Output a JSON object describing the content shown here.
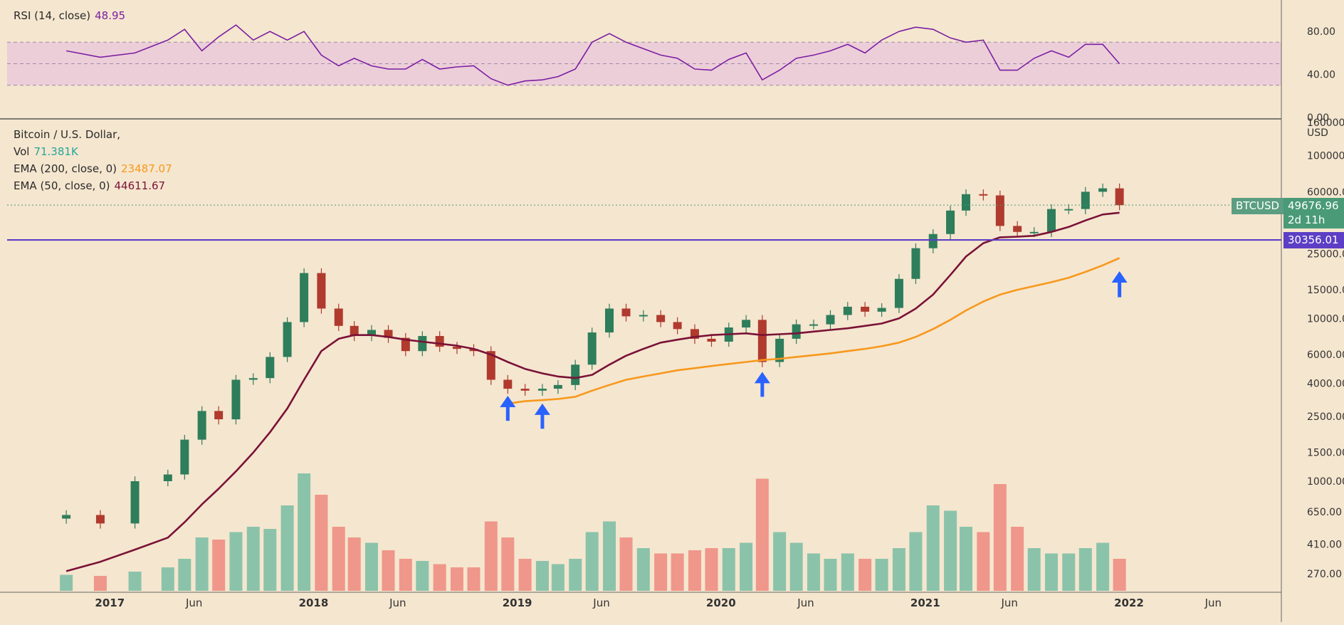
{
  "rsi_legend": {
    "label": "RSI (14, close)",
    "value": "48.95"
  },
  "main_legend": {
    "title": "Bitcoin / U.S. Dollar,",
    "vol_label": "Vol",
    "vol_value": "71.381K",
    "ema200_label": "EMA (200, close, 0)",
    "ema200_value": "23487.07",
    "ema50_label": "EMA (50, close, 0)",
    "ema50_value": "44611.67"
  },
  "price_axis": {
    "unit": "USD"
  },
  "badges": {
    "symbol": "BTCUSD",
    "last_price": "49676.96",
    "countdown": "2d 11h",
    "level": "30356.01"
  },
  "colors": {
    "background": "#f5e6cf",
    "up": "#2e7d5b",
    "down": "#b03a2e",
    "vol_up": "#7fbfa5",
    "vol_down": "#ee8e82",
    "ema50": "#7a1237",
    "ema200": "#f7981d",
    "rsi": "#7b1fa2",
    "level_line": "#5c3fc4",
    "arrow": "#2962ff"
  },
  "chart_data": [
    {
      "type": "line",
      "name": "RSI (14, close)",
      "ylim": [
        0,
        100
      ],
      "y_ticks": [
        "80.00",
        "40.00",
        "0.00"
      ],
      "bands": {
        "upper": 70,
        "lower": 30,
        "mid": 50
      },
      "x": [
        "2016-10",
        "2016-12",
        "2017-02",
        "2017-04",
        "2017-05",
        "2017-06",
        "2017-07",
        "2017-08",
        "2017-09",
        "2017-10",
        "2017-11",
        "2017-12",
        "2018-01",
        "2018-02",
        "2018-03",
        "2018-04",
        "2018-05",
        "2018-06",
        "2018-07",
        "2018-08",
        "2018-09",
        "2018-10",
        "2018-11",
        "2018-12",
        "2019-01",
        "2019-02",
        "2019-03",
        "2019-04",
        "2019-05",
        "2019-06",
        "2019-07",
        "2019-08",
        "2019-09",
        "2019-10",
        "2019-11",
        "2019-12",
        "2020-01",
        "2020-02",
        "2020-03",
        "2020-04",
        "2020-05",
        "2020-06",
        "2020-07",
        "2020-08",
        "2020-09",
        "2020-10",
        "2020-11",
        "2020-12",
        "2021-01",
        "2021-02",
        "2021-03",
        "2021-04",
        "2021-05",
        "2021-06",
        "2021-07",
        "2021-08",
        "2021-09",
        "2021-10",
        "2021-11",
        "2021-12"
      ],
      "values": [
        62,
        56,
        60,
        72,
        82,
        62,
        75,
        86,
        72,
        80,
        72,
        80,
        58,
        48,
        55,
        48,
        45,
        45,
        54,
        45,
        47,
        48,
        36,
        30,
        34,
        35,
        38,
        45,
        70,
        78,
        70,
        64,
        58,
        55,
        45,
        44,
        54,
        60,
        35,
        44,
        55,
        58,
        62,
        68,
        60,
        72,
        80,
        84,
        82,
        74,
        70,
        72,
        44,
        44,
        55,
        62,
        56,
        68,
        68,
        50
      ]
    },
    {
      "type": "line",
      "name": "Bitcoin / U.S. Dollar",
      "y_scale": "log",
      "ylim": [
        200,
        170000
      ],
      "y_ticks": [
        "160000.00",
        "100000.00",
        "60000.00",
        "25000.00",
        "15000.00",
        "10000.00",
        "6000.00",
        "4000.00",
        "2500.00",
        "1500.00",
        "1000.00",
        "650.00",
        "410.00",
        "270.00"
      ],
      "x_ticks": [
        "2017",
        "Jun",
        "2018",
        "Jun",
        "2019",
        "Jun",
        "2020",
        "Jun",
        "2021",
        "Jun",
        "2022",
        "Jun"
      ],
      "x": [
        "2016-10",
        "2016-12",
        "2017-02",
        "2017-04",
        "2017-05",
        "2017-06",
        "2017-07",
        "2017-08",
        "2017-09",
        "2017-10",
        "2017-11",
        "2017-12",
        "2018-01",
        "2018-02",
        "2018-03",
        "2018-04",
        "2018-05",
        "2018-06",
        "2018-07",
        "2018-08",
        "2018-09",
        "2018-10",
        "2018-11",
        "2018-12",
        "2019-01",
        "2019-02",
        "2019-03",
        "2019-04",
        "2019-05",
        "2019-06",
        "2019-07",
        "2019-08",
        "2019-09",
        "2019-10",
        "2019-11",
        "2019-12",
        "2020-01",
        "2020-02",
        "2020-03",
        "2020-04",
        "2020-05",
        "2020-06",
        "2020-07",
        "2020-08",
        "2020-09",
        "2020-10",
        "2020-11",
        "2020-12",
        "2021-01",
        "2021-02",
        "2021-03",
        "2021-04",
        "2021-05",
        "2021-06",
        "2021-07",
        "2021-08",
        "2021-09",
        "2021-10",
        "2021-11",
        "2021-12"
      ],
      "series": [
        {
          "name": "Bitcoin / U.S. Dollar",
          "values": [
            620,
            550,
            1000,
            1100,
            1800,
            2700,
            2400,
            4200,
            4300,
            5800,
            9500,
            19000,
            11500,
            9000,
            7800,
            8500,
            7600,
            6300,
            7800,
            6700,
            6500,
            6300,
            4200,
            3700,
            3600,
            3700,
            3900,
            5200,
            8200,
            11500,
            10300,
            10500,
            9500,
            8600,
            7500,
            7200,
            8800,
            9800,
            5400,
            7500,
            9200,
            9200,
            10500,
            11800,
            11000,
            11600,
            17500,
            27000,
            33000,
            46000,
            58000,
            57000,
            37000,
            34000,
            34000,
            47000,
            47000,
            60000,
            63000,
            49676.96
          ]
        },
        {
          "name": "EMA (200, close, 0)",
          "values": [
            null,
            null,
            null,
            null,
            null,
            null,
            null,
            null,
            null,
            null,
            null,
            null,
            null,
            null,
            null,
            null,
            null,
            null,
            null,
            null,
            null,
            null,
            null,
            3000,
            3100,
            3150,
            3200,
            3300,
            3600,
            3900,
            4200,
            4400,
            4600,
            4800,
            4950,
            5100,
            5250,
            5400,
            5550,
            5650,
            5800,
            5950,
            6100,
            6300,
            6500,
            6750,
            7100,
            7700,
            8600,
            9800,
            11200,
            12700,
            14000,
            15000,
            15800,
            16700,
            17800,
            19300,
            21200,
            23487.07
          ]
        },
        {
          "name": "EMA (50, close, 0)",
          "values": [
            280,
            320,
            380,
            450,
            560,
            720,
            900,
            1150,
            1500,
            2000,
            2800,
            4200,
            6300,
            7500,
            7900,
            7900,
            7700,
            7400,
            7200,
            7000,
            6800,
            6500,
            6000,
            5400,
            4900,
            4600,
            4400,
            4300,
            4500,
            5200,
            5900,
            6500,
            7100,
            7400,
            7700,
            7900,
            8000,
            8100,
            7900,
            8000,
            8100,
            8300,
            8500,
            8700,
            9000,
            9300,
            10000,
            11500,
            14000,
            18500,
            24000,
            29000,
            31500,
            31800,
            32200,
            34000,
            36500,
            40000,
            43500,
            44611.67
          ]
        }
      ],
      "horizontal_line": 30356.01,
      "annotations": [
        {
          "type": "arrow-up",
          "x": "2018-12"
        },
        {
          "type": "arrow-up",
          "x": "2019-02"
        },
        {
          "type": "arrow-up",
          "x": "2020-03"
        },
        {
          "type": "arrow-up",
          "x": "2021-12"
        }
      ]
    },
    {
      "type": "bar",
      "name": "Vol",
      "x": [
        "2016-10",
        "2016-12",
        "2017-02",
        "2017-04",
        "2017-05",
        "2017-06",
        "2017-07",
        "2017-08",
        "2017-09",
        "2017-10",
        "2017-11",
        "2017-12",
        "2018-01",
        "2018-02",
        "2018-03",
        "2018-04",
        "2018-05",
        "2018-06",
        "2018-07",
        "2018-08",
        "2018-09",
        "2018-10",
        "2018-11",
        "2018-12",
        "2019-01",
        "2019-02",
        "2019-03",
        "2019-04",
        "2019-05",
        "2019-06",
        "2019-07",
        "2019-08",
        "2019-09",
        "2019-10",
        "2019-11",
        "2019-12",
        "2020-01",
        "2020-02",
        "2020-03",
        "2020-04",
        "2020-05",
        "2020-06",
        "2020-07",
        "2020-08",
        "2020-09",
        "2020-10",
        "2020-11",
        "2020-12",
        "2021-01",
        "2021-02",
        "2021-03",
        "2021-04",
        "2021-05",
        "2021-06",
        "2021-07",
        "2021-08",
        "2021-09",
        "2021-10",
        "2021-11",
        "2021-12"
      ],
      "values": [
        15,
        14,
        18,
        22,
        30,
        50,
        48,
        55,
        60,
        58,
        80,
        110,
        90,
        60,
        50,
        45,
        38,
        30,
        28,
        25,
        22,
        22,
        65,
        50,
        30,
        28,
        25,
        30,
        55,
        65,
        50,
        40,
        35,
        35,
        38,
        40,
        40,
        45,
        105,
        55,
        45,
        35,
        30,
        35,
        30,
        30,
        40,
        55,
        80,
        75,
        60,
        55,
        100,
        60,
        40,
        35,
        35,
        40,
        45,
        30
      ]
    }
  ]
}
